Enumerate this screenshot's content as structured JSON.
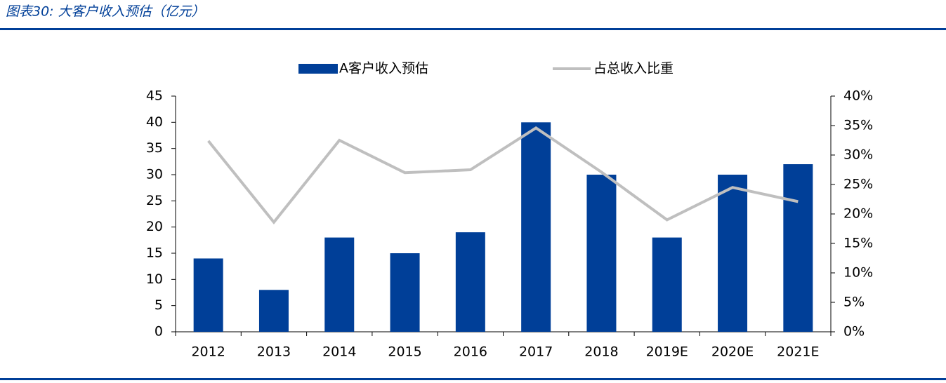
{
  "chart_data": {
    "type": "bar_line",
    "title": "图表30:  大客户收入预估（亿元）",
    "categories": [
      "2012",
      "2013",
      "2014",
      "2015",
      "2016",
      "2017",
      "2018",
      "2019E",
      "2020E",
      "2021E"
    ],
    "series": [
      {
        "name": "A客户收入预估",
        "type": "bar",
        "color": "#003f98",
        "values": [
          14,
          8,
          18,
          15,
          19,
          40,
          30,
          18,
          30,
          32
        ]
      },
      {
        "name": "占总收入比重",
        "type": "line",
        "axis": "y2",
        "color": "#bfbfbf",
        "values": [
          32.4,
          18.6,
          32.5,
          27.0,
          27.5,
          34.6,
          27.1,
          19.0,
          24.5,
          22.1
        ]
      }
    ],
    "ylim": [
      0,
      45
    ],
    "yticks": [
      0,
      5,
      10,
      15,
      20,
      25,
      30,
      35,
      40,
      45
    ],
    "y2lim": [
      0,
      40
    ],
    "y2ticks": [
      {
        "value": 0,
        "label": "0%"
      },
      {
        "value": 5,
        "label": "5%"
      },
      {
        "value": 10,
        "label": "10%"
      },
      {
        "value": 15,
        "label": "15%"
      },
      {
        "value": 20,
        "label": "20%"
      },
      {
        "value": 25,
        "label": "25%"
      },
      {
        "value": 30,
        "label": "30%"
      },
      {
        "value": 35,
        "label": "35%"
      },
      {
        "value": 40,
        "label": "40%"
      }
    ],
    "grid": false
  }
}
